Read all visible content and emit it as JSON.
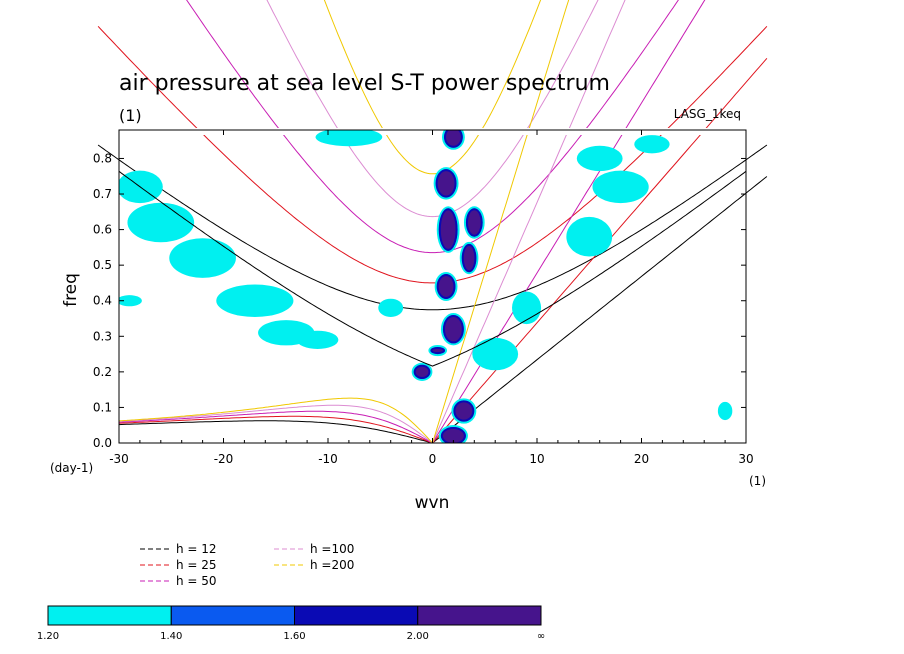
{
  "chart_data": {
    "type": "contour",
    "title": "air pressure at sea level S-T power spectrum",
    "subtitle": "(1)",
    "model_label": "LASG_1keq",
    "xlabel": "wvn",
    "ylabel": "freq",
    "x_unit": "(1)",
    "y_unit": "(day-1)",
    "xlim": [
      -30,
      30
    ],
    "ylim": [
      0,
      0.88
    ],
    "x_ticks": [
      "-30",
      "-20",
      "-10",
      "0",
      "10",
      "20",
      "30"
    ],
    "y_ticks": [
      "0.0",
      "0.1",
      "0.2",
      "0.3",
      "0.4",
      "0.5",
      "0.6",
      "0.7",
      "0.8"
    ],
    "legend": [
      {
        "label": "h = 12",
        "color": "#000000",
        "h": 12
      },
      {
        "label": "h = 25",
        "color": "#e0141e",
        "h": 25
      },
      {
        "label": "h = 50",
        "color": "#c81eb4",
        "h": 50
      },
      {
        "label": "h =100",
        "color": "#dc8cd2",
        "h": 100
      },
      {
        "label": "h =200",
        "color": "#f0c800",
        "h": 200
      }
    ],
    "colorbar": {
      "colors": [
        "#00f0f0",
        "#0a5af0",
        "#0a0ab4",
        "#46148c"
      ],
      "labels": [
        "1.20",
        "1.40",
        "1.60",
        "2.00",
        "∞"
      ]
    },
    "dispersion_curves": {
      "equivalent_depths": [
        12,
        25,
        50,
        100,
        200
      ],
      "types": [
        "kelvin",
        "mrg",
        "eig_n1",
        "er_n1"
      ]
    },
    "significant_regions": [
      {
        "x": 2,
        "y": 0.02,
        "rx": 1.2,
        "ry": 0.025,
        "level": 3
      },
      {
        "x": 3,
        "y": 0.09,
        "rx": 1.0,
        "ry": 0.03,
        "level": 3
      },
      {
        "x": -1,
        "y": 0.2,
        "rx": 0.8,
        "ry": 0.02,
        "level": 3
      },
      {
        "x": 2,
        "y": 0.32,
        "rx": 1.0,
        "ry": 0.04,
        "level": 3
      },
      {
        "x": 1.3,
        "y": 0.44,
        "rx": 0.9,
        "ry": 0.035,
        "level": 3
      },
      {
        "x": 3.5,
        "y": 0.52,
        "rx": 0.7,
        "ry": 0.04,
        "level": 3
      },
      {
        "x": 1.5,
        "y": 0.6,
        "rx": 0.9,
        "ry": 0.06,
        "level": 3
      },
      {
        "x": 4,
        "y": 0.62,
        "rx": 0.8,
        "ry": 0.04,
        "level": 3
      },
      {
        "x": 1.3,
        "y": 0.73,
        "rx": 1.0,
        "ry": 0.04,
        "level": 3
      },
      {
        "x": 2,
        "y": 0.86,
        "rx": 0.9,
        "ry": 0.03,
        "level": 3
      },
      {
        "x": 0.5,
        "y": 0.26,
        "rx": 0.7,
        "ry": 0.01,
        "level": 3
      },
      {
        "x": -22,
        "y": 0.52,
        "rx": 3.0,
        "ry": 0.05,
        "level": 1
      },
      {
        "x": -26,
        "y": 0.62,
        "rx": 3.0,
        "ry": 0.05,
        "level": 1
      },
      {
        "x": -28,
        "y": 0.72,
        "rx": 2.0,
        "ry": 0.04,
        "level": 1
      },
      {
        "x": -17,
        "y": 0.4,
        "rx": 3.5,
        "ry": 0.04,
        "level": 1
      },
      {
        "x": -14,
        "y": 0.31,
        "rx": 2.5,
        "ry": 0.03,
        "level": 1
      },
      {
        "x": -11,
        "y": 0.29,
        "rx": 1.8,
        "ry": 0.02,
        "level": 1
      },
      {
        "x": -8,
        "y": 0.86,
        "rx": 3.0,
        "ry": 0.02,
        "level": 1
      },
      {
        "x": -4,
        "y": 0.38,
        "rx": 1.0,
        "ry": 0.02,
        "level": 1
      },
      {
        "x": 6,
        "y": 0.25,
        "rx": 2.0,
        "ry": 0.04,
        "level": 1
      },
      {
        "x": 9,
        "y": 0.38,
        "rx": 1.2,
        "ry": 0.04,
        "level": 1
      },
      {
        "x": 15,
        "y": 0.58,
        "rx": 2.0,
        "ry": 0.05,
        "level": 1
      },
      {
        "x": 18,
        "y": 0.72,
        "rx": 2.5,
        "ry": 0.04,
        "level": 1
      },
      {
        "x": 16,
        "y": 0.8,
        "rx": 2.0,
        "ry": 0.03,
        "level": 1
      },
      {
        "x": 21,
        "y": 0.84,
        "rx": 1.5,
        "ry": 0.02,
        "level": 1
      },
      {
        "x": 28,
        "y": 0.09,
        "rx": 0.5,
        "ry": 0.02,
        "level": 1
      },
      {
        "x": -29,
        "y": 0.4,
        "rx": 1.0,
        "ry": 0.01,
        "level": 1
      }
    ]
  }
}
